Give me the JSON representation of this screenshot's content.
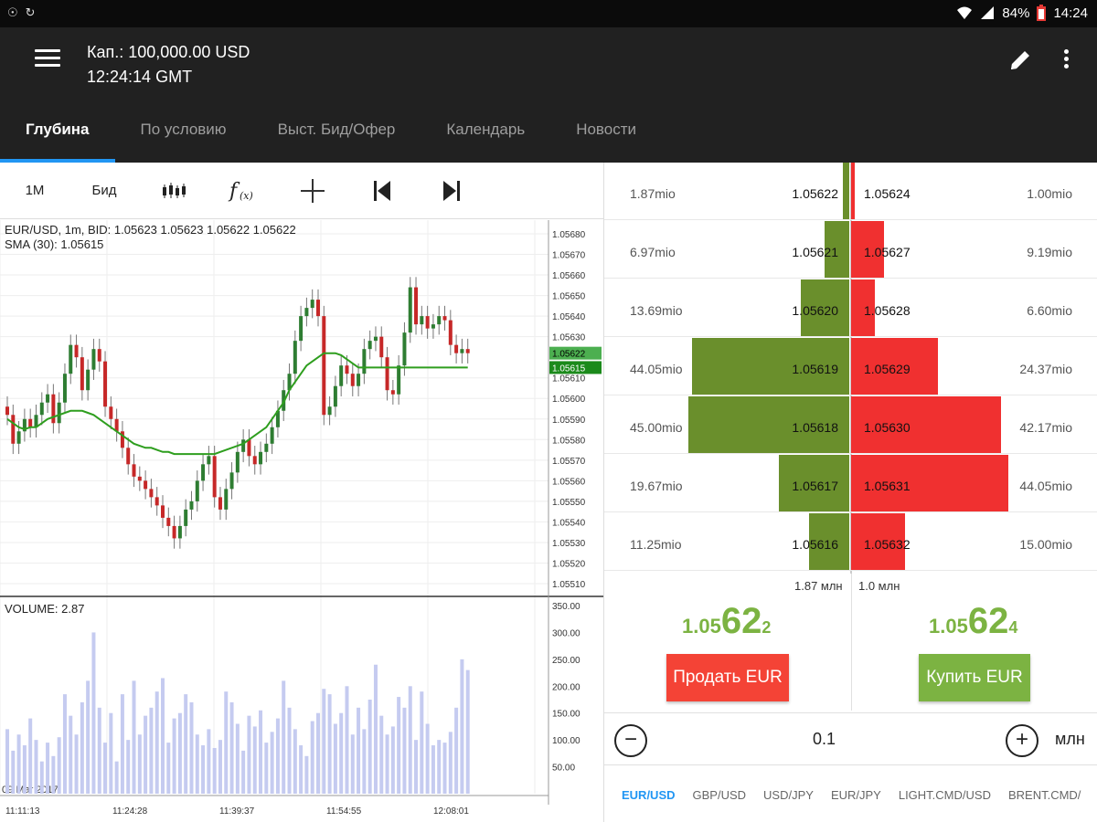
{
  "status_bar": {
    "battery": "84%",
    "time": "14:24",
    "icons": [
      "voicemail-icon",
      "sync-icon",
      "wifi-icon",
      "signal-icon",
      "battery-icon"
    ]
  },
  "header": {
    "capital": "Кап.: 100,000.00 USD",
    "time": "12:24:14 GMT"
  },
  "tabs": [
    {
      "label": "Глубина",
      "active": true
    },
    {
      "label": "По условию",
      "active": false
    },
    {
      "label": "Выст. Бид/Офер",
      "active": false
    },
    {
      "label": "Календарь",
      "active": false
    },
    {
      "label": "Новости",
      "active": false
    }
  ],
  "chart_toolbar": {
    "timeframe": "1М",
    "side": "Бид"
  },
  "chart": {
    "info_line1": "EUR/USD, 1m, BID: 1.05623 1.05623 1.05622 1.05622",
    "info_line2": "SMA (30): 1.05615",
    "volume_label": "VOLUME: 2.87",
    "date_label": "09 Mar 2017",
    "price_ticks": [
      "1.05680",
      "1.05670",
      "1.05660",
      "1.05650",
      "1.05640",
      "1.05630",
      "1.05610",
      "1.05600",
      "1.05590",
      "1.05580",
      "1.05570",
      "1.05560",
      "1.05550",
      "1.05540",
      "1.05530",
      "1.05520",
      "1.05510"
    ],
    "price_tag": "1.05622",
    "sma_tag": "1.05615",
    "volume_ticks": [
      "350.00",
      "300.00",
      "250.00",
      "200.00",
      "150.00",
      "100.00",
      "50.00"
    ],
    "time_ticks": [
      "11:11:13",
      "11:24:28",
      "11:39:37",
      "11:54:55",
      "12:08:01"
    ],
    "colors": {
      "up": "#2e7d32",
      "down": "#c62828",
      "sma": "#2e9e1e",
      "volume": "#c5cbf0"
    }
  },
  "chart_data": {
    "type": "candlestick",
    "price_range": [
      1.0551,
      1.0568
    ],
    "volume_range": [
      0,
      350
    ],
    "candles_close": [
      1.05592,
      1.05578,
      1.05584,
      1.0559,
      1.05586,
      1.05592,
      1.05598,
      1.05602,
      1.05588,
      1.05598,
      1.05612,
      1.05626,
      1.0562,
      1.05604,
      1.05614,
      1.05624,
      1.05618,
      1.05596,
      1.0559,
      1.05584,
      1.05576,
      1.05568,
      1.05562,
      1.0556,
      1.05556,
      1.05552,
      1.05548,
      1.05542,
      1.05538,
      1.05532,
      1.05538,
      1.05546,
      1.0555,
      1.0556,
      1.05568,
      1.05572,
      1.05552,
      1.05546,
      1.05556,
      1.05564,
      1.05574,
      1.0558,
      1.05572,
      1.05568,
      1.05574,
      1.05578,
      1.05586,
      1.05594,
      1.05604,
      1.05612,
      1.05628,
      1.0564,
      1.05644,
      1.05648,
      1.0564,
      1.05592,
      1.05596,
      1.05606,
      1.05616,
      1.05612,
      1.05606,
      1.05612,
      1.05624,
      1.05628,
      1.0563,
      1.0562,
      1.05604,
      1.05602,
      1.05616,
      1.05632,
      1.05654,
      1.05636,
      1.0564,
      1.05634,
      1.05636,
      1.0564,
      1.05638,
      1.05626,
      1.05622,
      1.05624,
      1.05622
    ],
    "volume": [
      120,
      80,
      110,
      90,
      140,
      100,
      60,
      95,
      70,
      105,
      185,
      145,
      110,
      170,
      210,
      300,
      160,
      95,
      150,
      60,
      185,
      100,
      210,
      110,
      145,
      160,
      190,
      215,
      95,
      140,
      150,
      185,
      170,
      110,
      90,
      120,
      85,
      100,
      190,
      170,
      130,
      80,
      145,
      125,
      155,
      95,
      115,
      140,
      210,
      160,
      120,
      90,
      70,
      135,
      150,
      195,
      185,
      130,
      150,
      200,
      110,
      160,
      120,
      175,
      240,
      145,
      110,
      125,
      180,
      160,
      200,
      100,
      190,
      130,
      90,
      100,
      95,
      115,
      160,
      250,
      230
    ],
    "sma": [
      1.0559,
      1.05588,
      1.05586,
      1.05585,
      1.05586,
      1.05586,
      1.05588,
      1.0559,
      1.05591,
      1.05592,
      1.05593,
      1.05594,
      1.05594,
      1.05594,
      1.05593,
      1.05592,
      1.0559,
      1.05588,
      1.05586,
      1.05584,
      1.05582,
      1.0558,
      1.05578,
      1.05577,
      1.05576,
      1.05576,
      1.05575,
      1.05574,
      1.05574,
      1.05573,
      1.05573,
      1.05573,
      1.05573,
      1.05573,
      1.05573,
      1.05573,
      1.05573,
      1.05574,
      1.05575,
      1.05576,
      1.05577,
      1.05578,
      1.0558,
      1.05582,
      1.05584,
      1.05586,
      1.0559,
      1.05594,
      1.05598,
      1.05604,
      1.05608,
      1.05612,
      1.05616,
      1.05618,
      1.0562,
      1.05622,
      1.05622,
      1.05622,
      1.05621,
      1.05619,
      1.05617,
      1.05615,
      1.05615,
      1.05615,
      1.05615,
      1.05615,
      1.05615,
      1.05615,
      1.05615,
      1.05615,
      1.05615,
      1.05615,
      1.05615,
      1.05615,
      1.05615,
      1.05615,
      1.05615,
      1.05615,
      1.05615,
      1.05615,
      1.05615
    ]
  },
  "order_book": {
    "rows": [
      {
        "bid_volume": "1.87mio",
        "bid_price": "1.05622",
        "ask_price": "1.05624",
        "ask_volume": "1.00mio",
        "bid_depth": 1.87,
        "ask_depth": 1.0
      },
      {
        "bid_volume": "6.97mio",
        "bid_price": "1.05621",
        "ask_price": "1.05627",
        "ask_volume": "9.19mio",
        "bid_depth": 6.97,
        "ask_depth": 9.19
      },
      {
        "bid_volume": "13.69mio",
        "bid_price": "1.05620",
        "ask_price": "1.05628",
        "ask_volume": "6.60mio",
        "bid_depth": 13.69,
        "ask_depth": 6.6
      },
      {
        "bid_volume": "44.05mio",
        "bid_price": "1.05619",
        "ask_price": "1.05629",
        "ask_volume": "24.37mio",
        "bid_depth": 44.05,
        "ask_depth": 24.37
      },
      {
        "bid_volume": "45.00mio",
        "bid_price": "1.05618",
        "ask_price": "1.05630",
        "ask_volume": "42.17mio",
        "bid_depth": 45.0,
        "ask_depth": 42.17
      },
      {
        "bid_volume": "19.67mio",
        "bid_price": "1.05617",
        "ask_price": "1.05631",
        "ask_volume": "44.05mio",
        "bid_depth": 19.67,
        "ask_depth": 44.05
      },
      {
        "bid_volume": "11.25mio",
        "bid_price": "1.05616",
        "ask_price": "1.05632",
        "ask_volume": "15.00mio",
        "bid_depth": 11.25,
        "ask_depth": 15.0
      }
    ],
    "colors": {
      "bid": "#6a8f2c",
      "ask": "#f03030"
    }
  },
  "trade": {
    "total_bid": "1.87 млн",
    "total_ask": "1.0 млн",
    "sell_price": {
      "prefix": "1.05",
      "big": "62",
      "suffix": "2"
    },
    "buy_price": {
      "prefix": "1.05",
      "big": "62",
      "suffix": "4"
    },
    "sell_label": "Продать EUR",
    "buy_label": "Купить EUR",
    "quantity": "0.1",
    "quantity_unit": "млн"
  },
  "pairs": [
    {
      "label": "EUR/USD",
      "active": true
    },
    {
      "label": "GBP/USD",
      "active": false
    },
    {
      "label": "USD/JPY",
      "active": false
    },
    {
      "label": "EUR/JPY",
      "active": false
    },
    {
      "label": "LIGHT.CMD/USD",
      "active": false
    },
    {
      "label": "BRENT.CMD/",
      "active": false
    }
  ]
}
